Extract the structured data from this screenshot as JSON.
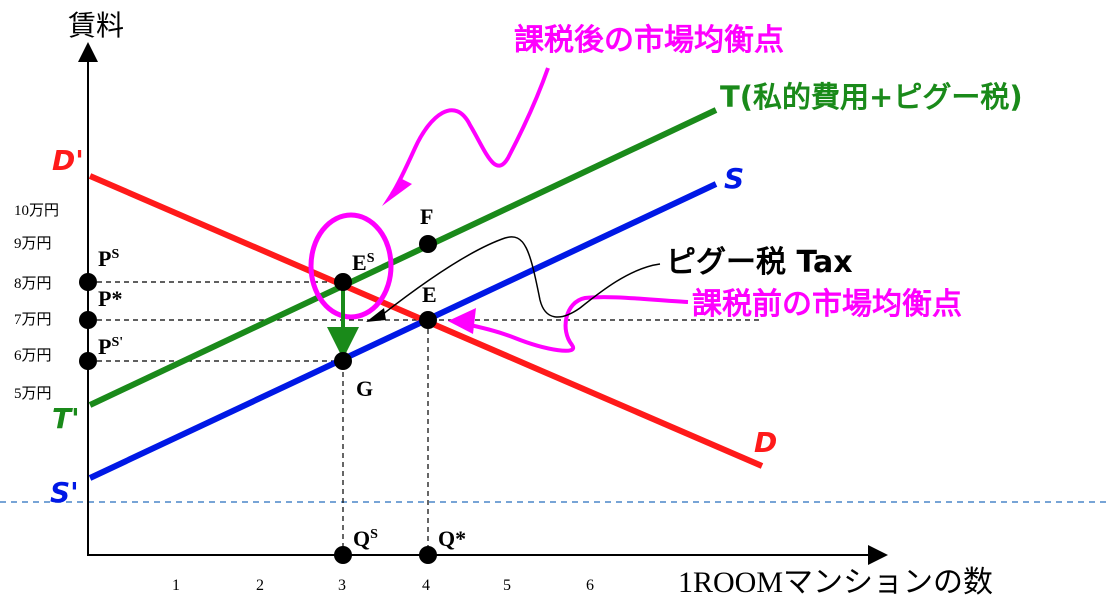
{
  "axes": {
    "y_label": "賃料",
    "x_label": "1ROOMマンションの数",
    "x_ticks": [
      "1",
      "2",
      "3",
      "4",
      "5",
      "6"
    ],
    "y_ticks": [
      "10万円",
      "9万円",
      "8万円",
      "7万円",
      "6万円",
      "5万円"
    ]
  },
  "curves": {
    "demand_start": "D'",
    "demand_end": "D",
    "supply_start": "S'",
    "supply_end": "S",
    "tax_start": "T'",
    "tax_end": "T(私的費用+ピグー税)"
  },
  "points": {
    "ps_base": "P",
    "ps_sup": "S",
    "pstar": "P*",
    "psp_base": "P",
    "psp_sup": "S'",
    "es_base": "E",
    "es_sup": "S",
    "e": "E",
    "f": "F",
    "g": "G",
    "qs_base": "Q",
    "qs_sup": "S",
    "qstar": "Q*"
  },
  "annotations": {
    "after_tax": "課税後の市場均衡点",
    "before_tax": "課税前の市場均衡点",
    "pigou_tax": "ピグー税 Tax"
  },
  "colors": {
    "demand": "#ff1a1a",
    "supply": "#0018e6",
    "tax": "#1a8a1a",
    "annotation": "#ff00ff",
    "axis": "#000000",
    "dashed_line": "#4a86c8"
  }
}
